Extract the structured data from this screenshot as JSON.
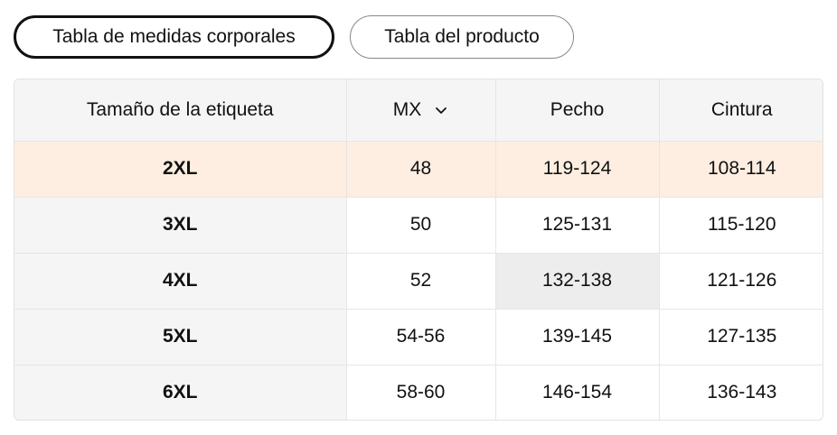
{
  "tabs": [
    {
      "label": "Tabla de medidas corporales",
      "active": true
    },
    {
      "label": "Tabla del producto",
      "active": false
    }
  ],
  "table": {
    "headers": {
      "size_label": "Tamaño de la etiqueta",
      "region": "MX",
      "chest": "Pecho",
      "waist": "Cintura"
    },
    "rows": [
      {
        "size": "2XL",
        "mx": "48",
        "chest": "119-124",
        "waist": "108-114"
      },
      {
        "size": "3XL",
        "mx": "50",
        "chest": "125-131",
        "waist": "115-120"
      },
      {
        "size": "4XL",
        "mx": "52",
        "chest": "132-138",
        "waist": "121-126"
      },
      {
        "size": "5XL",
        "mx": "54-56",
        "chest": "139-145",
        "waist": "127-135"
      },
      {
        "size": "6XL",
        "mx": "58-60",
        "chest": "146-154",
        "waist": "136-143"
      }
    ]
  },
  "icons": {
    "region_dropdown": "chevron-down-icon"
  },
  "colors": {
    "highlight_row": "#fdeee1",
    "header_bg": "#f5f5f5",
    "hover_cell": "#ededed"
  }
}
